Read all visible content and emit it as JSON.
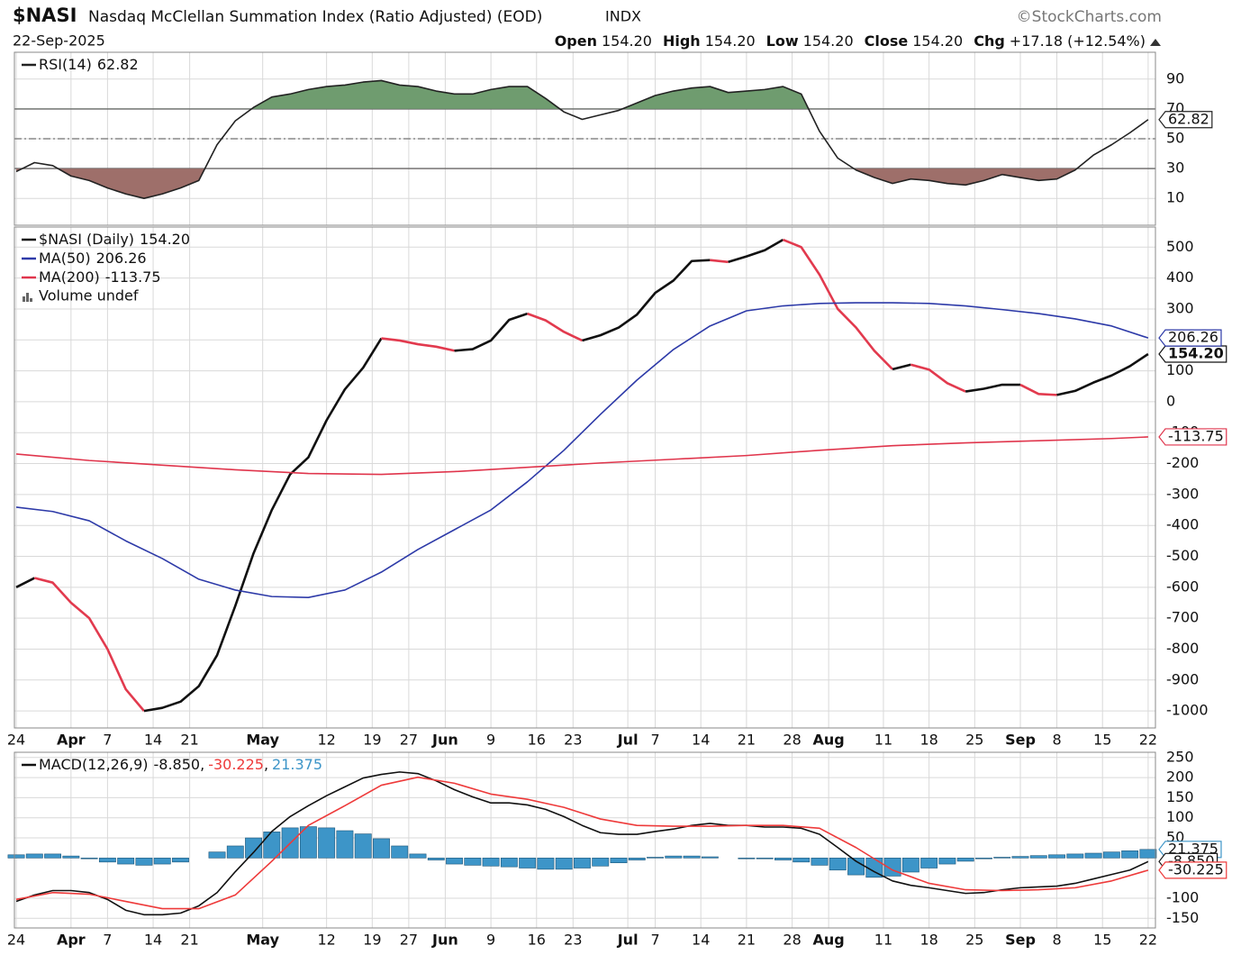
{
  "header": {
    "symbol": "$NASI",
    "name": "Nasdaq McClellan Summation Index (Ratio Adjusted) (EOD)",
    "exchange": "INDX",
    "credit": "©StockCharts.com",
    "date": "22-Sep-2025",
    "quote": [
      {
        "label": "Open",
        "value": "154.20"
      },
      {
        "label": "High",
        "value": "154.20"
      },
      {
        "label": "Low",
        "value": "154.20"
      },
      {
        "label": "Close",
        "value": "154.20"
      },
      {
        "label": "Chg",
        "value": "+17.18 (+12.54%)"
      }
    ]
  },
  "chart_data": [
    {
      "type": "line",
      "xlim": [
        -0.2,
        124.8
      ],
      "ylim": [
        -8,
        108
      ],
      "yticks": [
        10,
        30,
        50,
        70,
        90
      ],
      "grid": true,
      "overbought": 70,
      "oversold": 30,
      "midline": 50,
      "above_color": "#6f9c6f",
      "below_color": "#9e6f6a",
      "series": [
        {
          "name": "RSI(14)",
          "color": "#222222",
          "last_value_label": "62.82",
          "x": [
            0,
            2,
            4,
            6,
            8,
            10,
            12,
            14,
            16,
            18,
            20,
            22,
            24,
            26,
            28,
            30,
            32,
            34,
            36,
            38,
            40,
            42,
            44,
            46,
            48,
            50,
            52,
            54,
            56,
            58,
            60,
            62,
            64,
            66,
            68,
            70,
            72,
            74,
            76,
            78,
            80,
            82,
            84,
            86,
            88,
            90,
            92,
            94,
            96,
            98,
            100,
            102,
            104,
            106,
            108,
            110,
            112,
            114,
            116,
            118,
            120,
            122,
            124
          ],
          "values": [
            28,
            34,
            32,
            25,
            22,
            17,
            13,
            10,
            13,
            17,
            22,
            46,
            62,
            71,
            78,
            80,
            83,
            85,
            86,
            88,
            89,
            86,
            85,
            82,
            80,
            80,
            83,
            85,
            85,
            77,
            68,
            63,
            66,
            69,
            74,
            79,
            82,
            84,
            85,
            81,
            82,
            83,
            85,
            80,
            55,
            37,
            29,
            24,
            20,
            23,
            22,
            20,
            19,
            22,
            26,
            24,
            22,
            23,
            29,
            39,
            46,
            54,
            62.82
          ]
        }
      ]
    },
    {
      "type": "line",
      "xlim": [
        -0.2,
        124.8
      ],
      "ylim": [
        -1055,
        565
      ],
      "yticks": [
        500,
        400,
        300,
        200,
        100,
        0,
        -100,
        -200,
        -300,
        -400,
        -500,
        -600,
        -700,
        -800,
        -900,
        -1000
      ],
      "grid": true,
      "xticks": [
        {
          "value": 0,
          "label": "24"
        },
        {
          "value": 6,
          "label": "Apr"
        },
        {
          "value": 10,
          "label": "7"
        },
        {
          "value": 15,
          "label": "14"
        },
        {
          "value": 19,
          "label": "21"
        },
        {
          "value": 27,
          "label": "May"
        },
        {
          "value": 34,
          "label": "12"
        },
        {
          "value": 39,
          "label": "19"
        },
        {
          "value": 43,
          "label": "27"
        },
        {
          "value": 47,
          "label": "Jun"
        },
        {
          "value": 52,
          "label": "9"
        },
        {
          "value": 57,
          "label": "16"
        },
        {
          "value": 61,
          "label": "23"
        },
        {
          "value": 67,
          "label": "Jul"
        },
        {
          "value": 70,
          "label": "7"
        },
        {
          "value": 75,
          "label": "14"
        },
        {
          "value": 80,
          "label": "21"
        },
        {
          "value": 85,
          "label": "28"
        },
        {
          "value": 89,
          "label": "Aug"
        },
        {
          "value": 95,
          "label": "11"
        },
        {
          "value": 100,
          "label": "18"
        },
        {
          "value": 105,
          "label": "25"
        },
        {
          "value": 110,
          "label": "Sep"
        },
        {
          "value": 114,
          "label": "8"
        },
        {
          "value": 119,
          "label": "15"
        },
        {
          "value": 124,
          "label": "22"
        }
      ],
      "volume_label": "Volume undef",
      "series": [
        {
          "name": "$NASI (Daily)",
          "color": "#111111",
          "down_color": "#e23a4e",
          "last_value_label": "154.20",
          "x": [
            0,
            2,
            4,
            6,
            8,
            10,
            12,
            14,
            16,
            18,
            20,
            22,
            24,
            26,
            28,
            30,
            32,
            34,
            36,
            38,
            40,
            42,
            44,
            46,
            48,
            50,
            52,
            54,
            56,
            58,
            60,
            62,
            64,
            66,
            68,
            70,
            72,
            74,
            76,
            78,
            80,
            82,
            84,
            86,
            88,
            90,
            92,
            94,
            96,
            98,
            100,
            102,
            104,
            106,
            108,
            110,
            112,
            114,
            116,
            118,
            120,
            122,
            124
          ],
          "values": [
            -600,
            -570,
            -585,
            -650,
            -700,
            -800,
            -930,
            -1000,
            -990,
            -970,
            -920,
            -820,
            -660,
            -490,
            -350,
            -235,
            -180,
            -60,
            40,
            110,
            205,
            198,
            186,
            178,
            165,
            170,
            198,
            265,
            285,
            263,
            226,
            198,
            215,
            240,
            282,
            352,
            392,
            455,
            458,
            452,
            470,
            490,
            524,
            500,
            411,
            300,
            240,
            165,
            105,
            120,
            104,
            60,
            33,
            42,
            55,
            55,
            25,
            22,
            35,
            62,
            85,
            115,
            154.2
          ]
        },
        {
          "name": "MA(50)",
          "color": "#2d3aa8",
          "last_value_label": "206.26",
          "x": [
            0,
            4,
            8,
            12,
            16,
            20,
            24,
            28,
            32,
            36,
            40,
            44,
            48,
            52,
            56,
            60,
            64,
            68,
            72,
            76,
            80,
            84,
            88,
            92,
            96,
            100,
            104,
            108,
            112,
            116,
            120,
            124
          ],
          "values": [
            -341,
            -355,
            -385,
            -450,
            -507,
            -574,
            -609,
            -630,
            -633,
            -609,
            -551,
            -478,
            -414,
            -350,
            -259,
            -157,
            -41,
            70,
            169,
            245,
            294,
            310,
            318,
            320,
            320,
            318,
            310,
            298,
            285,
            268,
            245,
            206.26
          ]
        },
        {
          "name": "MA(200)",
          "color": "#e0354c",
          "last_value_label": "-113.75",
          "x": [
            0,
            8,
            16,
            24,
            32,
            40,
            48,
            56,
            64,
            72,
            80,
            88,
            96,
            104,
            112,
            120,
            124
          ],
          "values": [
            -169,
            -190,
            -205,
            -220,
            -232,
            -235,
            -226,
            -212,
            -198,
            -186,
            -174,
            -157,
            -142,
            -133,
            -126,
            -119,
            -113.75
          ]
        }
      ]
    },
    {
      "type": "line",
      "xlim": [
        -0.2,
        124.8
      ],
      "ylim": [
        -174,
        263
      ],
      "yticks": [
        250,
        200,
        150,
        100,
        50,
        -100,
        -150
      ],
      "grid": true,
      "xticks": [
        {
          "value": 0,
          "label": "24"
        },
        {
          "value": 6,
          "label": "Apr"
        },
        {
          "value": 10,
          "label": "7"
        },
        {
          "value": 15,
          "label": "14"
        },
        {
          "value": 19,
          "label": "21"
        },
        {
          "value": 27,
          "label": "May"
        },
        {
          "value": 34,
          "label": "12"
        },
        {
          "value": 39,
          "label": "19"
        },
        {
          "value": 43,
          "label": "27"
        },
        {
          "value": 47,
          "label": "Jun"
        },
        {
          "value": 52,
          "label": "9"
        },
        {
          "value": 57,
          "label": "16"
        },
        {
          "value": 61,
          "label": "23"
        },
        {
          "value": 67,
          "label": "Jul"
        },
        {
          "value": 70,
          "label": "7"
        },
        {
          "value": 75,
          "label": "14"
        },
        {
          "value": 80,
          "label": "21"
        },
        {
          "value": 85,
          "label": "28"
        },
        {
          "value": 89,
          "label": "Aug"
        },
        {
          "value": 95,
          "label": "11"
        },
        {
          "value": 100,
          "label": "18"
        },
        {
          "value": 105,
          "label": "25"
        },
        {
          "value": 110,
          "label": "Sep"
        },
        {
          "value": 114,
          "label": "8"
        },
        {
          "value": 119,
          "label": "15"
        },
        {
          "value": 124,
          "label": "22"
        }
      ],
      "legend_separator": ",",
      "series": [
        {
          "style": "bar",
          "color": "#3d95c8",
          "last_value_label": "21.375",
          "x": [
            0,
            2,
            4,
            6,
            8,
            10,
            12,
            14,
            16,
            18,
            20,
            22,
            24,
            26,
            28,
            30,
            32,
            34,
            36,
            38,
            40,
            42,
            44,
            46,
            48,
            50,
            52,
            54,
            56,
            58,
            60,
            62,
            64,
            66,
            68,
            70,
            72,
            74,
            76,
            78,
            80,
            82,
            84,
            86,
            88,
            90,
            92,
            94,
            96,
            98,
            100,
            102,
            104,
            106,
            108,
            110,
            112,
            114,
            116,
            118,
            120,
            122,
            124
          ],
          "values": [
            8,
            10,
            10,
            5,
            -2,
            -10,
            -15,
            -18,
            -15,
            -10,
            0,
            15,
            30,
            50,
            65,
            75,
            78,
            75,
            68,
            60,
            48,
            30,
            10,
            -5,
            -15,
            -18,
            -20,
            -22,
            -25,
            -28,
            -28,
            -25,
            -20,
            -12,
            -5,
            2,
            5,
            5,
            3,
            0,
            -2,
            -2,
            -5,
            -10,
            -18,
            -30,
            -42,
            -48,
            -45,
            -35,
            -25,
            -15,
            -8,
            -2,
            2,
            4,
            6,
            8,
            10,
            12,
            15,
            18,
            21.375
          ]
        },
        {
          "name": "MACD(12,26,9)",
          "color": "#111111",
          "last_value_label": "-8.850",
          "x": [
            0,
            2,
            4,
            6,
            8,
            10,
            12,
            14,
            16,
            18,
            20,
            22,
            24,
            26,
            28,
            30,
            32,
            34,
            36,
            38,
            40,
            42,
            44,
            46,
            48,
            50,
            52,
            54,
            56,
            58,
            60,
            62,
            64,
            66,
            68,
            70,
            72,
            74,
            76,
            78,
            80,
            82,
            84,
            86,
            88,
            90,
            92,
            94,
            96,
            98,
            100,
            102,
            104,
            106,
            108,
            110,
            112,
            114,
            116,
            118,
            120,
            122,
            124
          ],
          "values": [
            -108,
            -92,
            -81,
            -81,
            -86,
            -103,
            -130,
            -141,
            -141,
            -137,
            -119,
            -86,
            -34,
            14,
            66,
            103,
            130,
            155,
            177,
            199,
            208,
            214,
            210,
            192,
            170,
            152,
            137,
            137,
            132,
            121,
            103,
            81,
            63,
            59,
            59,
            66,
            72,
            81,
            86,
            81,
            81,
            77,
            77,
            74,
            59,
            26,
            -8,
            -34,
            -57,
            -68,
            -74,
            -81,
            -88,
            -86,
            -79,
            -74,
            -72,
            -70,
            -63,
            -52,
            -41,
            -30,
            -8.85
          ]
        },
        {
          "color": "#ee3a3a",
          "last_value_label": "-30.225",
          "x": [
            0,
            4,
            8,
            12,
            16,
            20,
            24,
            28,
            32,
            36,
            40,
            44,
            48,
            52,
            56,
            60,
            64,
            68,
            72,
            76,
            80,
            84,
            88,
            92,
            96,
            100,
            104,
            108,
            112,
            116,
            120,
            124
          ],
          "values": [
            -103,
            -86,
            -90,
            -108,
            -126,
            -126,
            -92,
            -8,
            81,
            130,
            181,
            201,
            186,
            159,
            146,
            126,
            97,
            81,
            79,
            79,
            81,
            81,
            74,
            26,
            -30,
            -63,
            -79,
            -81,
            -79,
            -74,
            -57,
            -30.225
          ]
        }
      ]
    }
  ]
}
